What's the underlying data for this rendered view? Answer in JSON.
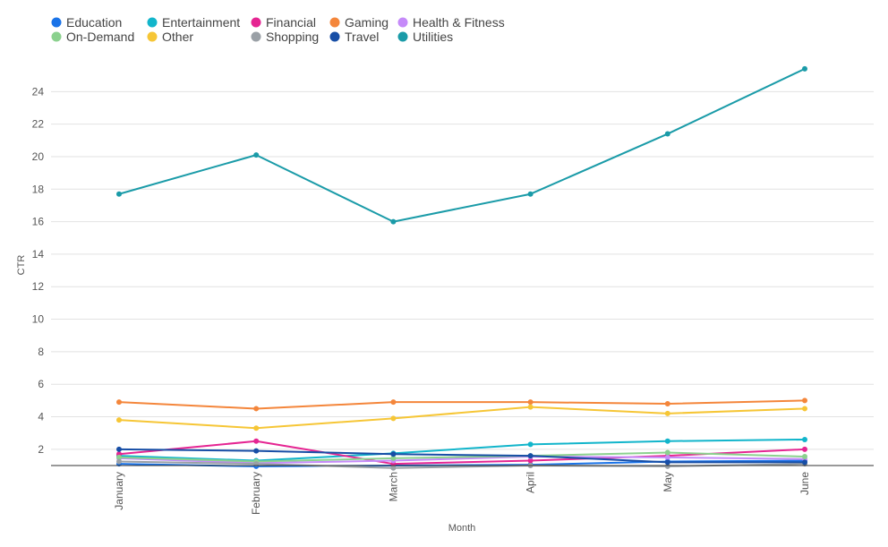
{
  "chart_data": {
    "type": "line",
    "title": "",
    "xlabel": "Month",
    "ylabel": "CTR",
    "categories": [
      "January",
      "February",
      "March",
      "April",
      "May",
      "June"
    ],
    "ylim": [
      1,
      26
    ],
    "yticks": [
      2,
      4,
      6,
      8,
      10,
      12,
      14,
      16,
      18,
      20,
      22,
      24
    ],
    "grid": true,
    "legend": "top-left",
    "series": [
      {
        "name": "Education",
        "color": "#1a73e8",
        "values": [
          1.1,
          0.95,
          1.0,
          1.05,
          1.25,
          1.3
        ]
      },
      {
        "name": "Entertainment",
        "color": "#12b5cb",
        "values": [
          1.6,
          1.3,
          1.75,
          2.3,
          2.5,
          2.6
        ]
      },
      {
        "name": "Financial",
        "color": "#e52592",
        "values": [
          1.7,
          2.5,
          1.1,
          1.3,
          1.6,
          2.0
        ]
      },
      {
        "name": "Gaming",
        "color": "#f4863b",
        "values": [
          4.9,
          4.5,
          4.9,
          4.9,
          4.8,
          5.0
        ]
      },
      {
        "name": "Health & Fitness",
        "color": "#c58af9",
        "values": [
          1.45,
          1.15,
          1.3,
          1.55,
          1.5,
          1.4
        ]
      },
      {
        "name": "On-Demand",
        "color": "#8bd18e",
        "values": [
          1.5,
          1.25,
          1.45,
          1.6,
          1.8,
          1.55
        ]
      },
      {
        "name": "Other",
        "color": "#f6c636",
        "values": [
          3.8,
          3.3,
          3.9,
          4.6,
          4.2,
          4.5
        ]
      },
      {
        "name": "Shopping",
        "color": "#9aa0a6",
        "values": [
          1.25,
          1.1,
          0.85,
          1.0,
          0.95,
          1.1
        ]
      },
      {
        "name": "Travel",
        "color": "#174ea6",
        "values": [
          2.0,
          1.9,
          1.7,
          1.6,
          1.2,
          1.2
        ]
      },
      {
        "name": "Utilities",
        "color": "#1a9ba8",
        "values": [
          17.7,
          20.1,
          16.0,
          17.7,
          21.4,
          25.4
        ]
      }
    ]
  }
}
